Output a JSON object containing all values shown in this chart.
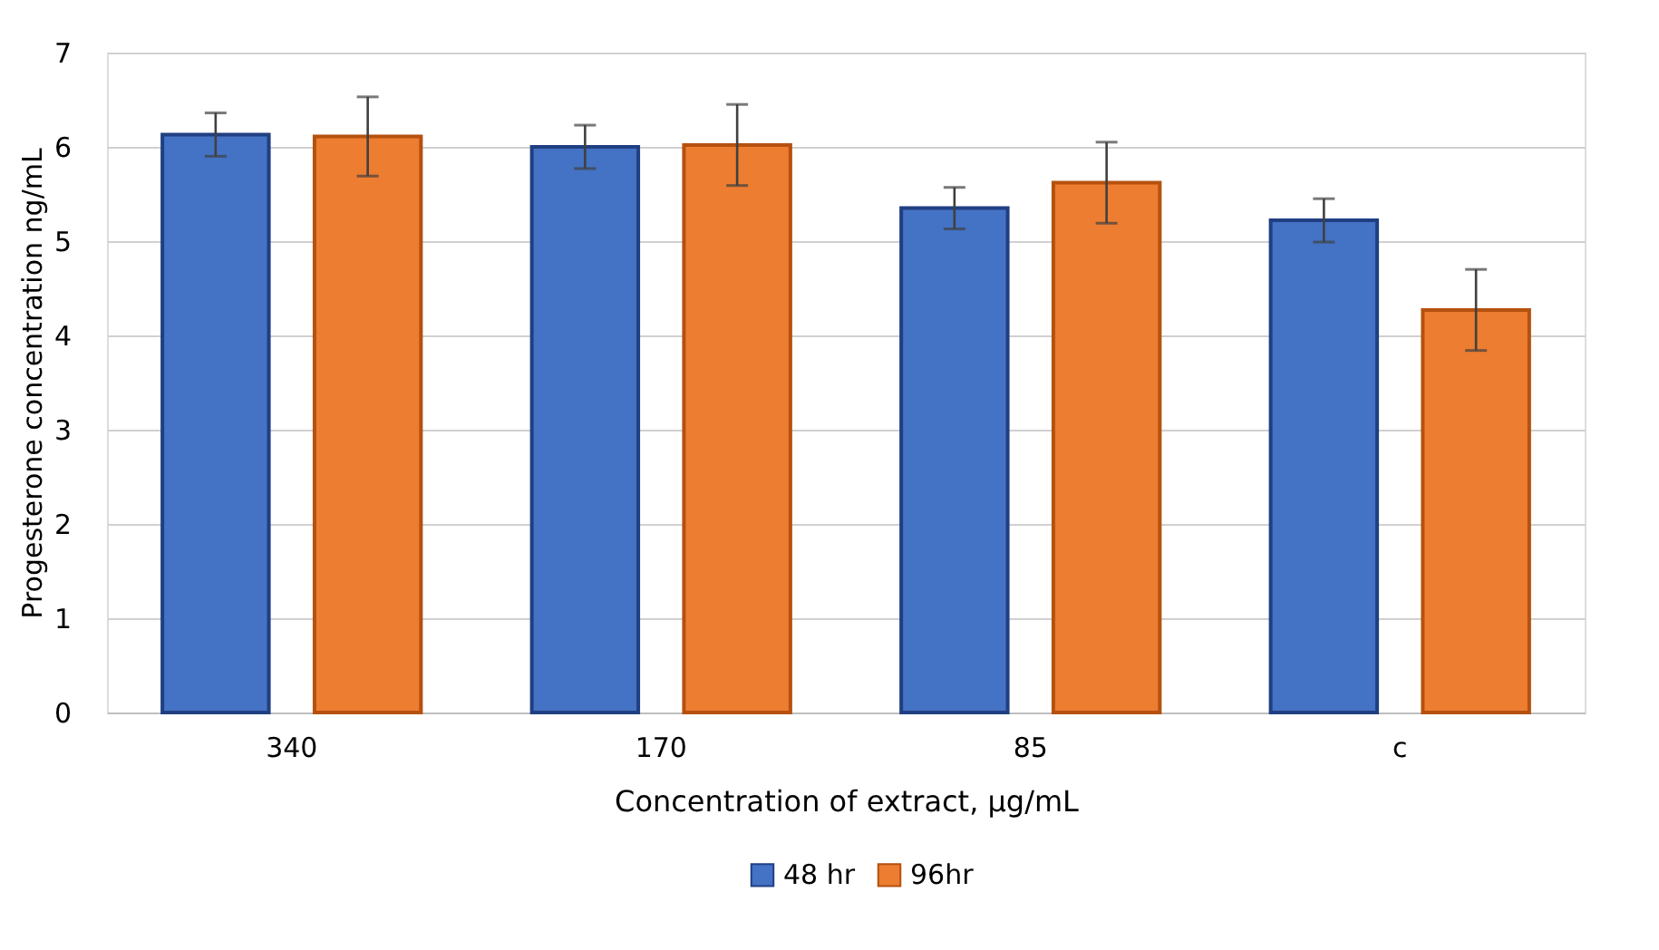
{
  "chart_data": {
    "type": "bar",
    "xlabel": "Concentration of extract, µg/mL",
    "ylabel": "Progesterone concentration ng/mL",
    "categories": [
      "340",
      "170",
      "85",
      "c"
    ],
    "series": [
      {
        "name": "48 hr",
        "color": "#4472c4",
        "values": [
          6.13,
          6.0,
          5.35,
          5.22
        ],
        "errors": [
          0.23,
          0.23,
          0.22,
          0.23
        ]
      },
      {
        "name": "96hr",
        "color": "#ed7d31",
        "values": [
          6.11,
          6.02,
          5.62,
          4.27
        ],
        "errors": [
          0.42,
          0.43,
          0.43,
          0.43
        ]
      }
    ],
    "ylim": [
      0,
      7
    ],
    "yticks": [
      0,
      1,
      2,
      3,
      4,
      5,
      6,
      7
    ],
    "grid": "y",
    "legend": "bottom"
  }
}
